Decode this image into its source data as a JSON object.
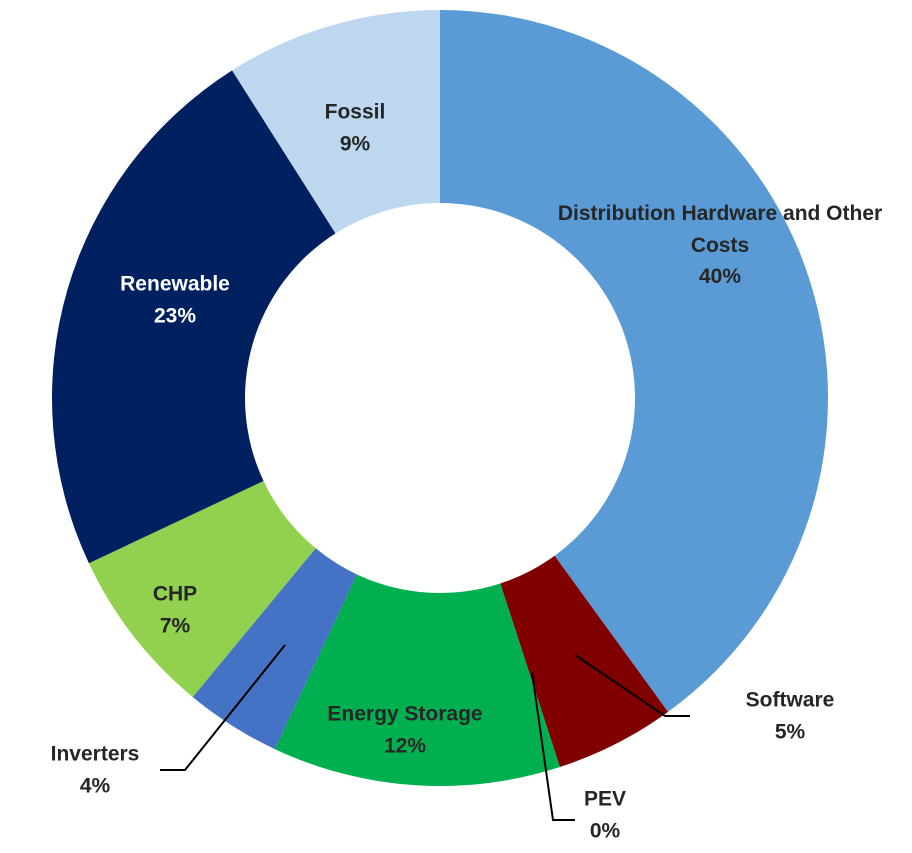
{
  "chart_data": {
    "type": "donut",
    "categories": [
      "Distribution Hardware and Other Costs",
      "Software",
      "PEV",
      "Energy Storage",
      "Inverters",
      "CHP",
      "Renewable",
      "Fossil"
    ],
    "values": [
      40,
      5,
      0,
      12,
      4,
      7,
      23,
      9
    ],
    "value_labels": [
      "40%",
      "5%",
      "0%",
      "12%",
      "4%",
      "7%",
      "23%",
      "9%"
    ],
    "colors": [
      "#5b9bd5",
      "#800000",
      "#c00000",
      "#00b050",
      "#4472c4",
      "#92d050",
      "#002060",
      "#bdd7ee"
    ]
  }
}
